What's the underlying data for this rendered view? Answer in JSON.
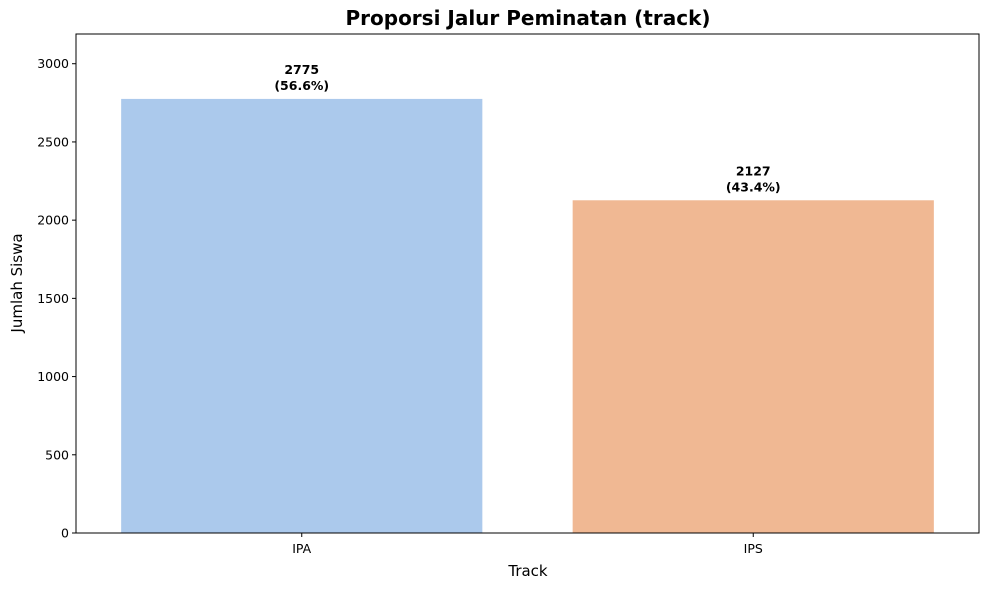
{
  "chart_data": {
    "type": "bar",
    "title": "Proporsi Jalur Peminatan (track)",
    "xlabel": "Track",
    "ylabel": "Jumlah Siswa",
    "categories": [
      "IPA",
      "IPS"
    ],
    "values": [
      2775,
      2127
    ],
    "data_labels": [
      [
        "2775",
        "(56.6%)"
      ],
      [
        "2127",
        "(43.4%)"
      ]
    ],
    "colors": [
      "#abc9ec",
      "#f0b893"
    ],
    "ylim": [
      0,
      3190
    ],
    "yticks": [
      0,
      500,
      1000,
      1500,
      2000,
      2500,
      3000
    ],
    "grid": false,
    "legend": false
  }
}
